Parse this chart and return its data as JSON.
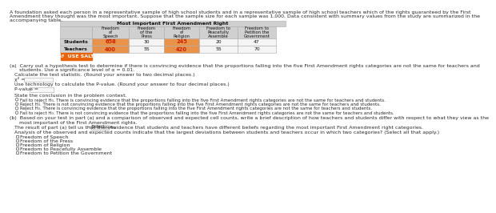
{
  "intro_lines": [
    "A foundation asked each person in a representative sample of high school students and in a representative sample of high school teachers which of the rights guaranteed by the First",
    "Amendment they thought was the most important. Suppose that the sample size for each sample was 1,000. Data consistent with summary values from the study are summarized in the",
    "accompanying table."
  ],
  "table_title": "Most Important First Amendment Right",
  "col_headers": [
    "Freedom\nof\nSpeech",
    "Freedom\nof the\nPress",
    "Freedom\nof\nReligion",
    "Freedom to\nPeacefully\nAssemble",
    "Freedom to\nPetition the\nGovernment"
  ],
  "row_labels": [
    "Students",
    "Teachers"
  ],
  "table_data": [
    [
      658,
      30,
      245,
      20,
      47
    ],
    [
      400,
      55,
      420,
      55,
      70
    ]
  ],
  "highlight_cols": [
    0,
    2
  ],
  "salt_label": "↺  USE SALT",
  "part_a_lines": [
    "(a)  Carry out a hypothesis test to determine if there is convincing evidence that the proportions falling into the five First Amendment rights categories are not the same for teachers and",
    "      students. Use a significance level of α = 0.01."
  ],
  "calc_stat_line": "Calculate the test statistic. (Round your answer to two decimal places.)",
  "chi_label": "χ² =",
  "pval_line": "Use technology to calculate the P-value. (Round your answer to four decimal places.)",
  "pval_label": "P-value =",
  "conclude_line": "State the conclusion in the problem context.",
  "options": [
    "Fail to reject H₀. There is convincing evidence that the proportions falling into the five First Amendment rights categories are not the same for teachers and students.",
    "Reject H₀. There is not convincing evidence that the proportions falling into the five First Amendment rights categories are not the same for teachers and students.",
    "Reject H₀. There is convincing evidence that the proportions falling into the five First Amendment rights categories are not the same for teachers and students.",
    "Fail to reject H₀. There is not convincing evidence that the proportions falling into the five First Amendment rights categories are not the same for teachers and students."
  ],
  "part_b_lines": [
    "(b)  Based on your test in part (a) and a comparison of observed and expected cell counts, write a brief description of how teachers and students differ with respect to what they view as the",
    "      most important of the First Amendment rights."
  ],
  "select_line1": "The result of part (a) tell us that there is",
  "select_box_label": "---Select---",
  "select_line2": "evidence that students and teachers have different beliefs regarding the most important First Amendment right categories.",
  "analysis_line": "Analysis of the observed and expected counts indicate that the largest deviations between students and teachers occur in which two categories? (Select all that apply.)",
  "checkboxes": [
    "Freedom of Speech",
    "Freedom of the Press",
    "Freedom of Religion",
    "Freedom to Peacefully Assemble",
    "Freedom to Petition the Government"
  ],
  "bg": "#ffffff",
  "text_color": "#2a2a2a",
  "table_hdr_bg": "#d0d0d0",
  "table_cell_bg": "#f5f5f5",
  "highlight_bg": "#e8924a",
  "highlight_text": "#cc2000",
  "salt_bg": "#e8640a",
  "salt_fg": "#ffffff",
  "border_color": "#aaaaaa",
  "input_bg": "#f8f8f8",
  "input_border": "#aaaaaa",
  "select_bg": "#eeeeee",
  "radio_color": "#555555"
}
